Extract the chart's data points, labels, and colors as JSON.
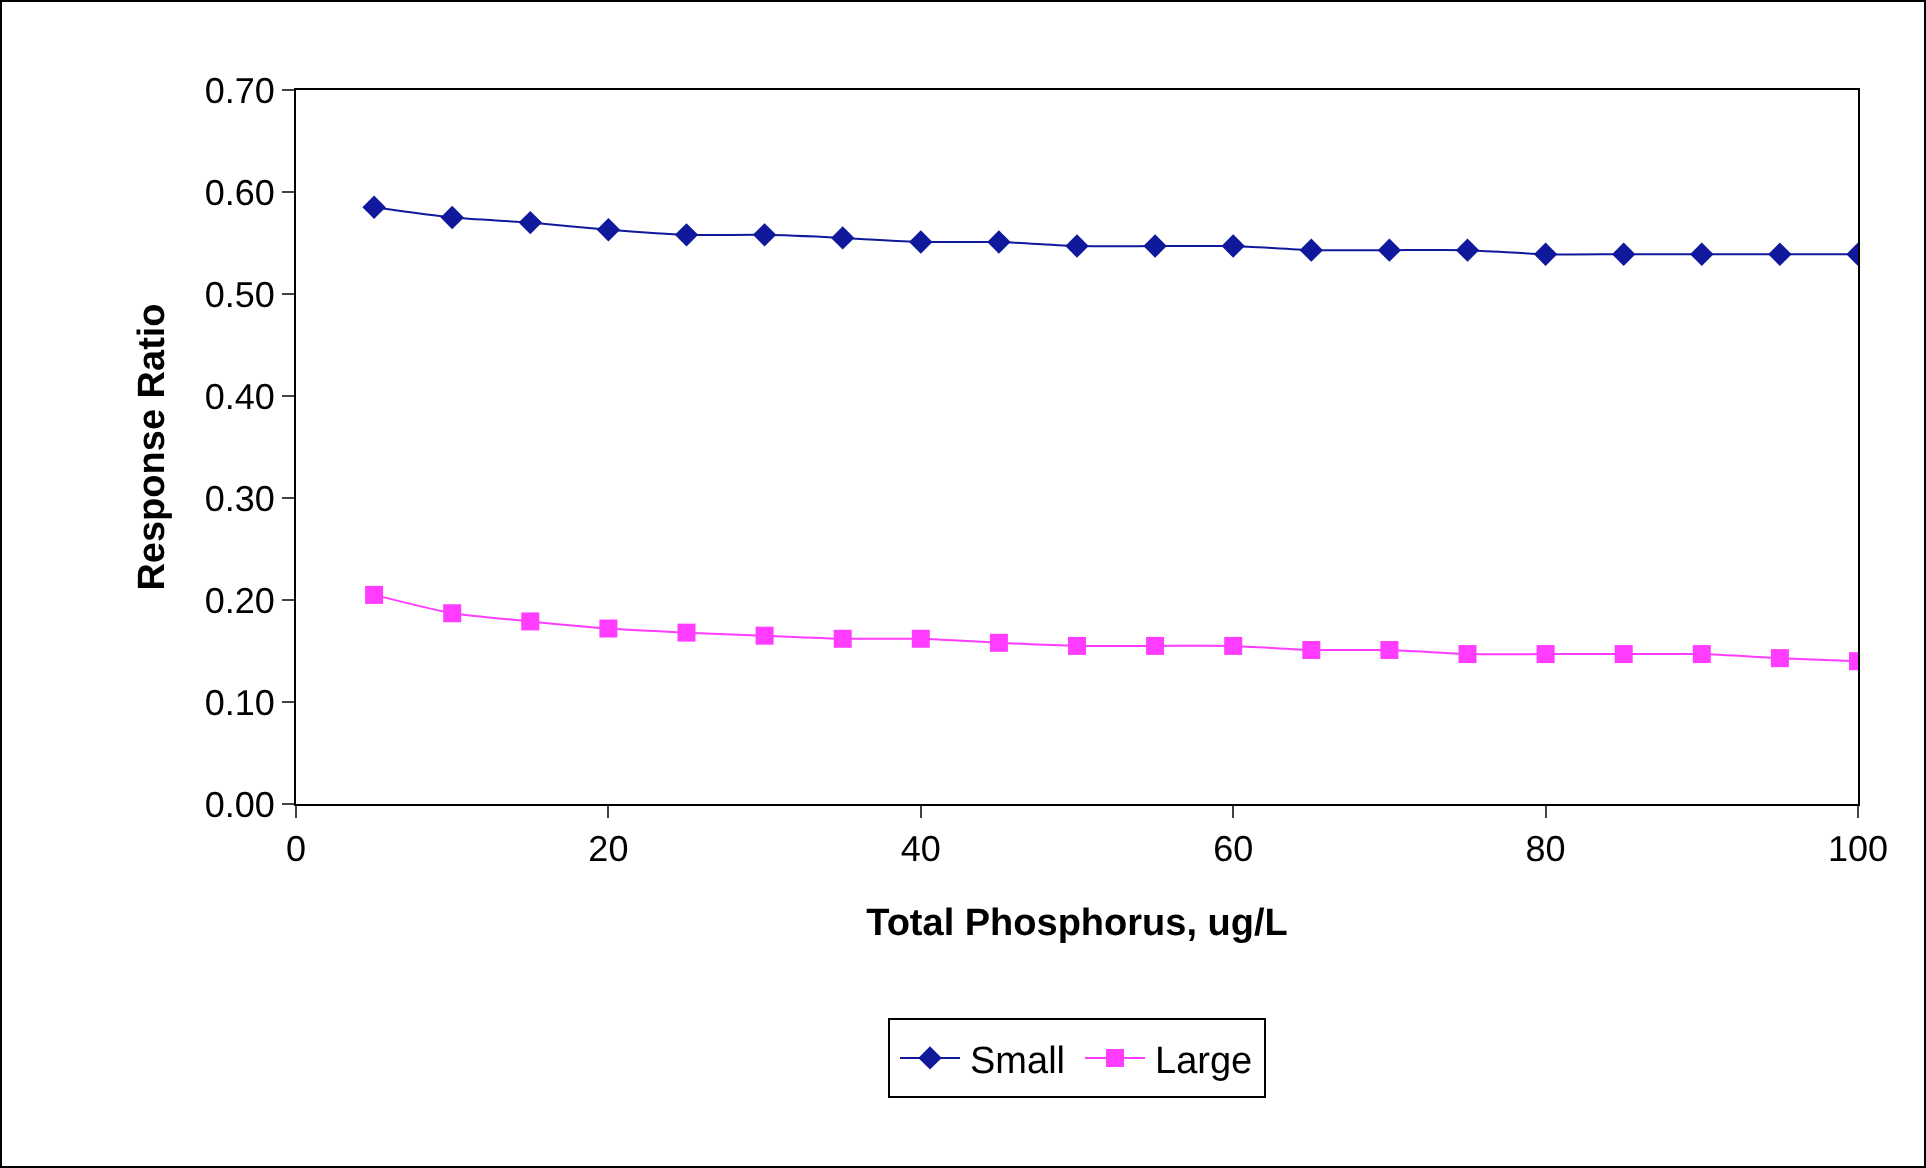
{
  "chart_data": {
    "type": "line",
    "xlabel": "Total Phosphorus, ug/L",
    "ylabel": "Response Ratio",
    "x": [
      5,
      10,
      15,
      20,
      25,
      30,
      35,
      40,
      45,
      50,
      55,
      60,
      65,
      70,
      75,
      80,
      85,
      90,
      95,
      100
    ],
    "xlim": [
      0,
      100
    ],
    "xticks": [
      0,
      20,
      40,
      60,
      80,
      100
    ],
    "ylim": [
      0,
      0.7
    ],
    "yticks": [
      {
        "value": 0,
        "label": "0.00"
      },
      {
        "value": 0.1,
        "label": "0.10"
      },
      {
        "value": 0.2,
        "label": "0.20"
      },
      {
        "value": 0.3,
        "label": "0.30"
      },
      {
        "value": 0.4,
        "label": "0.40"
      },
      {
        "value": 0.5,
        "label": "0.50"
      },
      {
        "value": 0.6,
        "label": "0.60"
      },
      {
        "value": 0.7,
        "label": "0.70"
      }
    ],
    "grid": false,
    "legend": "bottom",
    "line_style": "solid",
    "series": [
      {
        "name": "Small",
        "color": "#10189c",
        "marker": "diamond",
        "values": [
          0.585,
          0.575,
          0.57,
          0.563,
          0.558,
          0.558,
          0.555,
          0.551,
          0.551,
          0.547,
          0.547,
          0.547,
          0.543,
          0.543,
          0.543,
          0.539,
          0.539,
          0.539,
          0.539,
          0.539
        ]
      },
      {
        "name": "Large",
        "color": "#ff3cff",
        "marker": "square",
        "values": [
          0.205,
          0.187,
          0.179,
          0.172,
          0.168,
          0.165,
          0.162,
          0.162,
          0.158,
          0.155,
          0.155,
          0.155,
          0.151,
          0.151,
          0.147,
          0.147,
          0.147,
          0.147,
          0.143,
          0.14
        ]
      }
    ]
  }
}
